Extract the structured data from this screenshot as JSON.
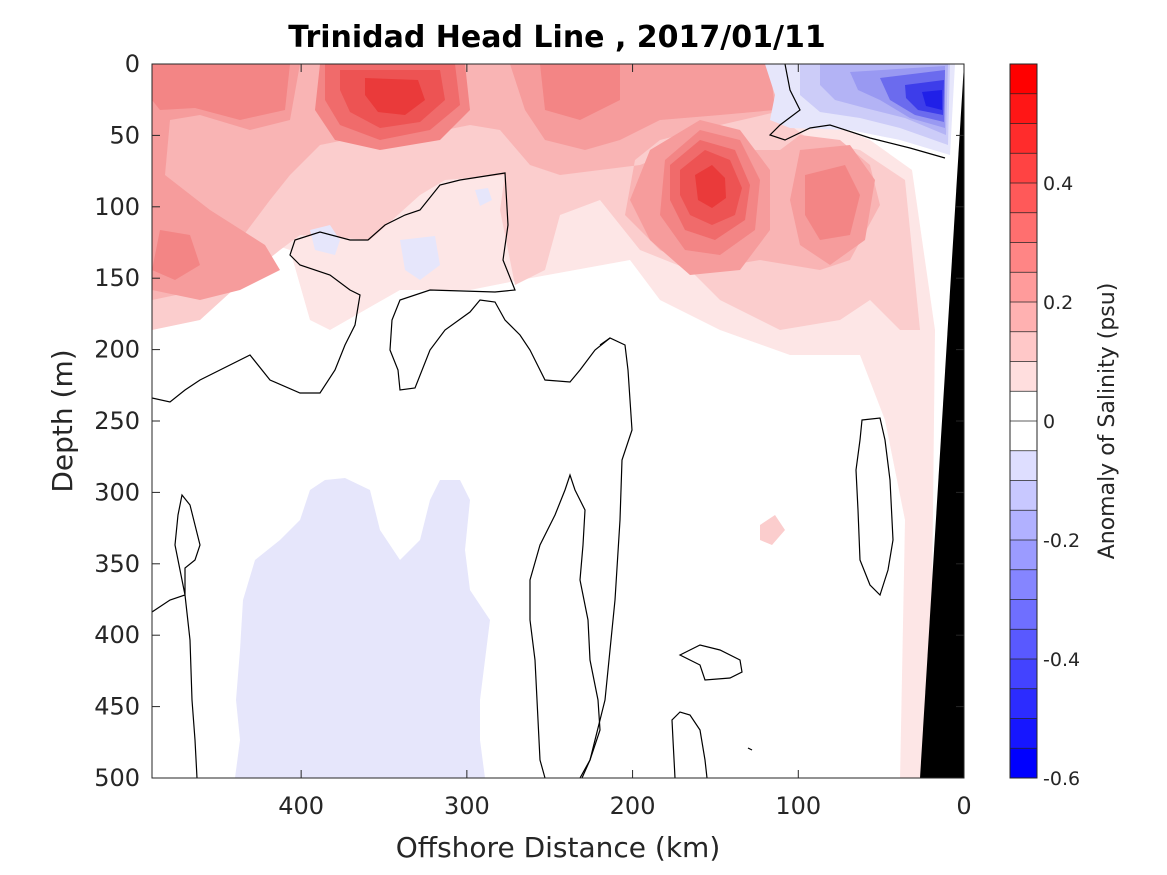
{
  "chart_data": {
    "type": "heatmap",
    "title": "Trinidad Head Line , 2017/01/11",
    "xlabel": "Offshore Distance (km)",
    "ylabel": "Depth (m)",
    "xlim": [
      490,
      0
    ],
    "ylim": [
      0,
      500
    ],
    "x_reversed": true,
    "y_reversed": true,
    "x_ticks": [
      "400",
      "300",
      "200",
      "100",
      "0"
    ],
    "y_ticks": [
      "0",
      "50",
      "100",
      "150",
      "200",
      "250",
      "300",
      "350",
      "400",
      "450",
      "500"
    ],
    "colorbar": {
      "label": "Anomaly of Salinity (psu)",
      "range": [
        -0.6,
        0.6
      ],
      "step": 0.05,
      "ticks": [
        "0.4",
        "0.2",
        "0",
        "-0.2",
        "-0.4",
        "-0.6"
      ]
    },
    "features": [
      {
        "name": "high anomaly core",
        "x_km": 335,
        "depth_m": 20,
        "value": 0.4
      },
      {
        "name": "high anomaly core",
        "x_km": 150,
        "depth_m": 80,
        "value": 0.45
      },
      {
        "name": "moderate anomaly",
        "x_km": 230,
        "depth_m": 30,
        "value": 0.25
      },
      {
        "name": "moderate anomaly",
        "x_km": 80,
        "depth_m": 110,
        "value": 0.25
      },
      {
        "name": "moderate anomaly",
        "x_km": 470,
        "depth_m": 140,
        "value": 0.2
      },
      {
        "name": "negative nearshore core",
        "x_km": 15,
        "depth_m": 30,
        "value": -0.45
      },
      {
        "name": "weak negative",
        "x_km": 360,
        "depth_m": 420,
        "value": -0.05
      }
    ],
    "bathymetry_color": "#000000",
    "grid": false
  },
  "colors": {
    "positive_max": "#ff0000",
    "negative_max": "#0000ff",
    "zero": "#ffffff"
  }
}
